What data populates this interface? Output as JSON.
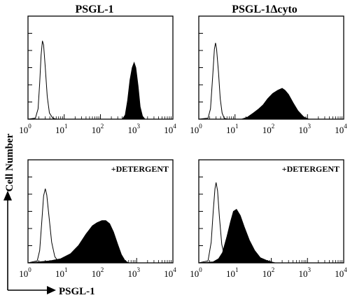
{
  "figure": {
    "column_titles": [
      "PSGL-1",
      "PSGL-1Δcyto"
    ],
    "y_axis_label": "Cell Number",
    "x_axis_label": "PSGL-1"
  },
  "chart_data": [
    {
      "type": "histogram",
      "name": "panel-top-left",
      "title": "PSGL-1",
      "annotation": "",
      "xscale": "log",
      "xlim": [
        1,
        10000
      ],
      "xticks": [
        "10^0",
        "10^1",
        "10^2",
        "10^3",
        "10^4"
      ],
      "ylim": [
        0,
        1
      ],
      "series": [
        {
          "style": "open",
          "points": [
            [
              1,
              0
            ],
            [
              1.6,
              0.01
            ],
            [
              1.9,
              0.1
            ],
            [
              2.1,
              0.35
            ],
            [
              2.3,
              0.62
            ],
            [
              2.5,
              0.76
            ],
            [
              2.7,
              0.72
            ],
            [
              3.0,
              0.5
            ],
            [
              3.4,
              0.22
            ],
            [
              3.9,
              0.06
            ],
            [
              4.8,
              0.01
            ],
            [
              6,
              0
            ],
            [
              10000,
              0
            ]
          ]
        },
        {
          "style": "filled",
          "points": [
            [
              1,
              0
            ],
            [
              400,
              0
            ],
            [
              480,
              0.04
            ],
            [
              560,
              0.18
            ],
            [
              650,
              0.38
            ],
            [
              750,
              0.5
            ],
            [
              850,
              0.55
            ],
            [
              950,
              0.5
            ],
            [
              1100,
              0.32
            ],
            [
              1250,
              0.12
            ],
            [
              1450,
              0.03
            ],
            [
              1700,
              0
            ],
            [
              10000,
              0
            ]
          ]
        }
      ]
    },
    {
      "type": "histogram",
      "name": "panel-top-right",
      "title": "PSGL-1Δcyto",
      "annotation": "",
      "xscale": "log",
      "xlim": [
        1,
        10000
      ],
      "xticks": [
        "10^0",
        "10^1",
        "10^2",
        "10^3",
        "10^4"
      ],
      "ylim": [
        0,
        1
      ],
      "series": [
        {
          "style": "open",
          "points": [
            [
              1,
              0
            ],
            [
              1.8,
              0.01
            ],
            [
              2.1,
              0.1
            ],
            [
              2.4,
              0.4
            ],
            [
              2.7,
              0.68
            ],
            [
              2.9,
              0.74
            ],
            [
              3.1,
              0.68
            ],
            [
              3.5,
              0.45
            ],
            [
              3.9,
              0.2
            ],
            [
              4.4,
              0.06
            ],
            [
              5,
              0.01
            ],
            [
              6,
              0
            ],
            [
              10000,
              0
            ]
          ]
        },
        {
          "style": "filled",
          "points": [
            [
              1,
              0
            ],
            [
              15,
              0
            ],
            [
              22,
              0.02
            ],
            [
              32,
              0.06
            ],
            [
              45,
              0.1
            ],
            [
              60,
              0.14
            ],
            [
              80,
              0.2
            ],
            [
              110,
              0.25
            ],
            [
              150,
              0.28
            ],
            [
              200,
              0.3
            ],
            [
              240,
              0.28
            ],
            [
              300,
              0.24
            ],
            [
              400,
              0.16
            ],
            [
              550,
              0.08
            ],
            [
              800,
              0.02
            ],
            [
              1100,
              0
            ],
            [
              10000,
              0
            ]
          ]
        }
      ]
    },
    {
      "type": "histogram",
      "name": "panel-bottom-left",
      "title": "",
      "annotation": "+DETERGENT",
      "xscale": "log",
      "xlim": [
        1,
        10000
      ],
      "xticks": [
        "10^0",
        "10^1",
        "10^2",
        "10^3",
        "10^4"
      ],
      "ylim": [
        0,
        1
      ],
      "series": [
        {
          "style": "open",
          "points": [
            [
              1,
              0
            ],
            [
              1.8,
              0.02
            ],
            [
              2.1,
              0.12
            ],
            [
              2.4,
              0.4
            ],
            [
              2.7,
              0.65
            ],
            [
              3.0,
              0.72
            ],
            [
              3.3,
              0.66
            ],
            [
              3.8,
              0.45
            ],
            [
              4.5,
              0.2
            ],
            [
              5.5,
              0.06
            ],
            [
              7,
              0.01
            ],
            [
              9,
              0
            ],
            [
              10000,
              0
            ]
          ]
        },
        {
          "style": "filled",
          "points": [
            [
              1,
              0
            ],
            [
              2,
              0.01
            ],
            [
              4,
              0.02
            ],
            [
              8,
              0.04
            ],
            [
              15,
              0.09
            ],
            [
              25,
              0.17
            ],
            [
              40,
              0.28
            ],
            [
              60,
              0.36
            ],
            [
              80,
              0.39
            ],
            [
              110,
              0.41
            ],
            [
              140,
              0.41
            ],
            [
              180,
              0.38
            ],
            [
              230,
              0.3
            ],
            [
              300,
              0.18
            ],
            [
              380,
              0.08
            ],
            [
              480,
              0.02
            ],
            [
              600,
              0
            ],
            [
              10000,
              0
            ]
          ]
        }
      ]
    },
    {
      "type": "histogram",
      "name": "panel-bottom-right",
      "title": "",
      "annotation": "+DETERGENT",
      "xscale": "log",
      "xlim": [
        1,
        10000
      ],
      "xticks": [
        "10^0",
        "10^1",
        "10^2",
        "10^3",
        "10^4"
      ],
      "ylim": [
        0,
        1
      ],
      "series": [
        {
          "style": "open",
          "points": [
            [
              1,
              0
            ],
            [
              1.8,
              0.02
            ],
            [
              2.2,
              0.2
            ],
            [
              2.5,
              0.5
            ],
            [
              2.8,
              0.72
            ],
            [
              3.0,
              0.78
            ],
            [
              3.3,
              0.7
            ],
            [
              3.7,
              0.45
            ],
            [
              4.3,
              0.18
            ],
            [
              5.2,
              0.05
            ],
            [
              6.5,
              0.01
            ],
            [
              8,
              0
            ],
            [
              10000,
              0
            ]
          ]
        },
        {
          "style": "filled",
          "points": [
            [
              1,
              0
            ],
            [
              2.5,
              0.01
            ],
            [
              3.5,
              0.04
            ],
            [
              4.5,
              0.1
            ],
            [
              6,
              0.26
            ],
            [
              7.5,
              0.4
            ],
            [
              9,
              0.5
            ],
            [
              11,
              0.52
            ],
            [
              14,
              0.46
            ],
            [
              18,
              0.35
            ],
            [
              25,
              0.22
            ],
            [
              35,
              0.12
            ],
            [
              50,
              0.05
            ],
            [
              80,
              0.02
            ],
            [
              130,
              0
            ],
            [
              10000,
              0
            ]
          ]
        }
      ]
    }
  ]
}
